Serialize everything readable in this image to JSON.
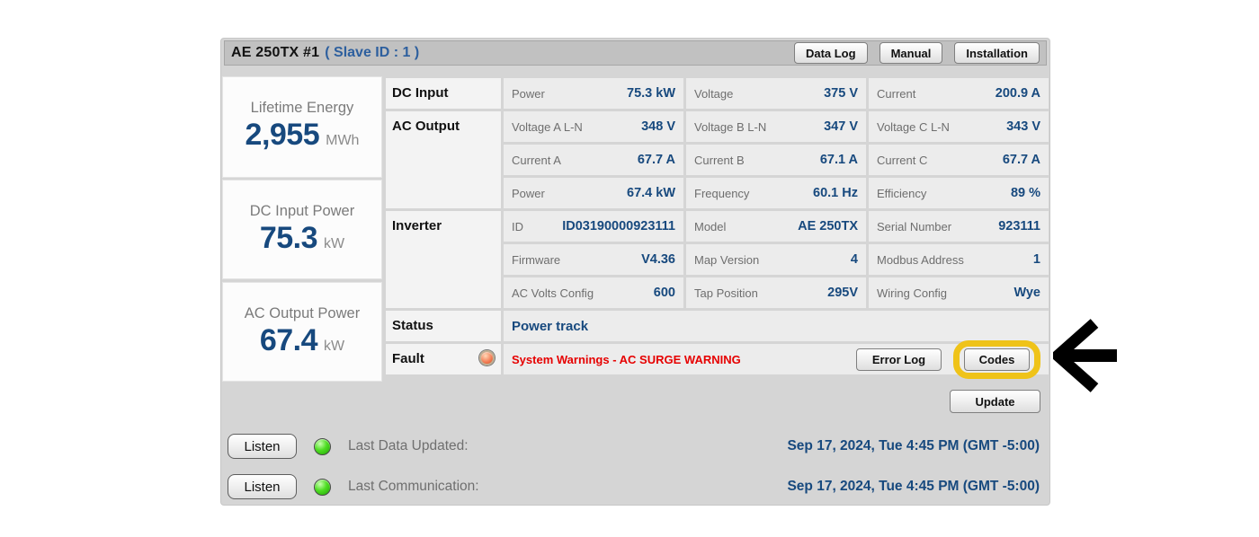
{
  "header": {
    "title": "AE 250TX #1",
    "subtitle": "( Slave ID : 1 )",
    "buttons": [
      "Data Log",
      "Manual",
      "Installation"
    ]
  },
  "summary_cards": [
    {
      "label": "Lifetime Energy",
      "value": "2,955",
      "unit": "MWh"
    },
    {
      "label": "DC Input Power",
      "value": "75.3",
      "unit": "kW"
    },
    {
      "label": "AC Output Power",
      "value": "67.4",
      "unit": "kW"
    }
  ],
  "table": {
    "groups": [
      {
        "label": "DC Input",
        "rows": [
          [
            {
              "label": "Power",
              "value": "75.3 kW"
            },
            {
              "label": "Voltage",
              "value": "375 V"
            },
            {
              "label": "Current",
              "value": "200.9 A"
            }
          ]
        ]
      },
      {
        "label": "AC Output",
        "rows": [
          [
            {
              "label": "Voltage A L-N",
              "value": "348 V"
            },
            {
              "label": "Voltage B L-N",
              "value": "347 V"
            },
            {
              "label": "Voltage C L-N",
              "value": "343 V"
            }
          ],
          [
            {
              "label": "Current A",
              "value": "67.7 A"
            },
            {
              "label": "Current B",
              "value": "67.1 A"
            },
            {
              "label": "Current C",
              "value": "67.7 A"
            }
          ],
          [
            {
              "label": "Power",
              "value": "67.4 kW"
            },
            {
              "label": "Frequency",
              "value": "60.1 Hz"
            },
            {
              "label": "Efficiency",
              "value": "89 %"
            }
          ]
        ]
      },
      {
        "label": "Inverter",
        "rows": [
          [
            {
              "label": "ID",
              "value": "ID03190000923111"
            },
            {
              "label": "Model",
              "value": "AE 250TX"
            },
            {
              "label": "Serial Number",
              "value": "923111"
            }
          ],
          [
            {
              "label": "Firmware",
              "value": "V4.36"
            },
            {
              "label": "Map Version",
              "value": "4"
            },
            {
              "label": "Modbus Address",
              "value": "1"
            }
          ],
          [
            {
              "label": "AC Volts Config",
              "value": "600"
            },
            {
              "label": "Tap Position",
              "value": "295V"
            },
            {
              "label": "Wiring Config",
              "value": "Wye"
            }
          ]
        ]
      }
    ],
    "status": {
      "label": "Status",
      "value": "Power track"
    },
    "fault": {
      "label": "Fault",
      "led_icon": "amber-led-icon",
      "message": "System Warnings - AC SURGE WARNING",
      "error_log_button": "Error Log",
      "codes_button": "Codes"
    }
  },
  "update_button": "Update",
  "footer": {
    "rows": [
      {
        "button": "Listen",
        "led_icon": "green-led-icon",
        "label": "Last Data Updated:",
        "timestamp": "Sep 17, 2024, Tue 4:45 PM (GMT -5:00)"
      },
      {
        "button": "Listen",
        "led_icon": "green-led-icon",
        "label": "Last Communication:",
        "timestamp": "Sep 17, 2024, Tue 4:45 PM (GMT -5:00)"
      }
    ]
  },
  "annotations": {
    "highlight_target": "Codes",
    "arrow_icon": "left-arrow-icon"
  },
  "colors": {
    "panel_bg": "#d5d5d5",
    "header_bg": "#c1c1c1",
    "cell_bg": "#ececec",
    "label_cell_bg": "#f3f3f3",
    "value_blue": "#17497e",
    "subtitle_blue": "#2d5f9e",
    "fault_red": "#e60000",
    "highlight_yellow": "#efc319",
    "led_green": "#3fd41e",
    "led_amber": "#f4825a"
  }
}
